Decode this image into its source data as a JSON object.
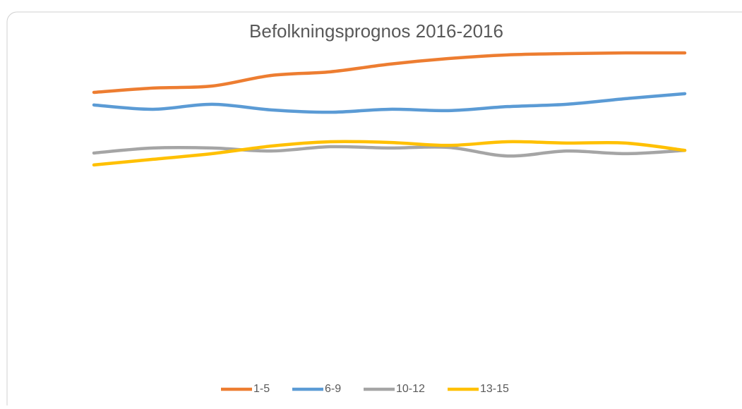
{
  "chart_data": {
    "type": "line",
    "title": "Befolkningsprognos 2016-2016",
    "categories": [
      null,
      null,
      null,
      null,
      null,
      null,
      null,
      null,
      null,
      null,
      null
    ],
    "series": [
      {
        "name": "1-5",
        "color": "#ed7d31",
        "values": [
          84.9,
          86.2,
          86.8,
          90.0,
          91.1,
          93.4,
          95.1,
          96.2,
          96.6,
          96.8,
          96.8
        ]
      },
      {
        "name": "6-9",
        "color": "#5b9bd5",
        "values": [
          81.1,
          79.8,
          81.3,
          79.6,
          78.9,
          79.8,
          79.4,
          80.6,
          81.3,
          83.0,
          84.5
        ]
      },
      {
        "name": "10-12",
        "color": "#a5a5a5",
        "values": [
          66.6,
          68.1,
          68.1,
          67.2,
          68.5,
          68.1,
          68.3,
          65.7,
          67.2,
          66.4,
          67.4
        ]
      },
      {
        "name": "13-15",
        "color": "#ffc000",
        "values": [
          63.0,
          64.7,
          66.4,
          68.7,
          70.0,
          69.8,
          68.9,
          70.0,
          69.6,
          69.6,
          67.4
        ]
      }
    ],
    "ylim": [
      0,
      100
    ],
    "smooth": true,
    "legend": "bottom"
  }
}
